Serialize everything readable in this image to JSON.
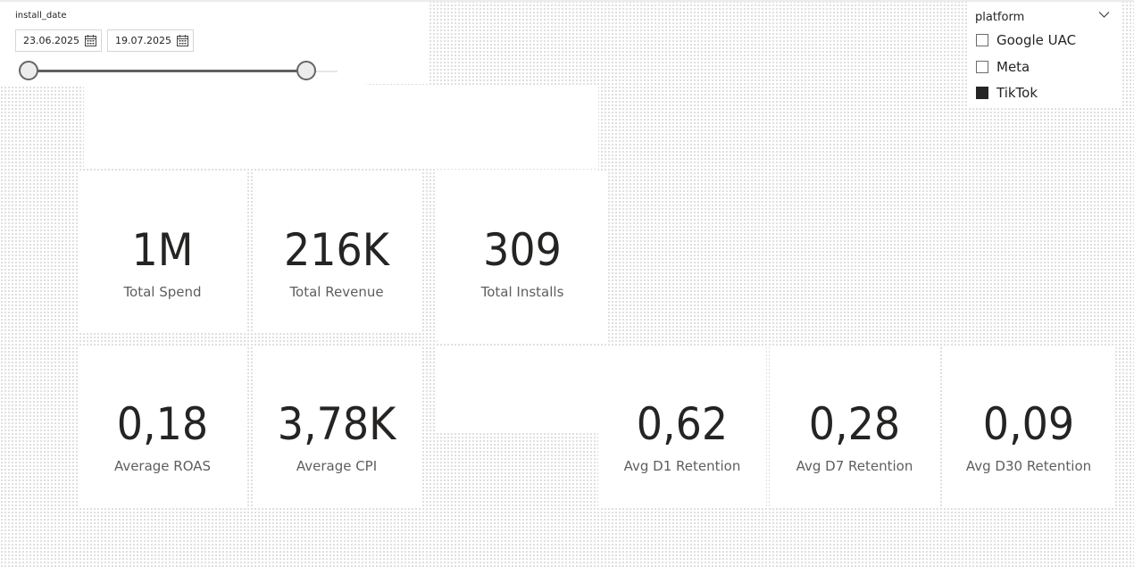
{
  "date_slicer": {
    "title": "install_date",
    "start_date": "23.06.2025",
    "end_date": "19.07.2025",
    "icon": "calendar-icon"
  },
  "platform_slicer": {
    "title": "platform",
    "items": [
      {
        "label": "Google UAC",
        "checked": false
      },
      {
        "label": "Meta",
        "checked": false
      },
      {
        "label": "TikTok",
        "checked": true
      }
    ]
  },
  "kpis": {
    "total_spend": {
      "value": "1M",
      "label": "Total Spend"
    },
    "total_revenue": {
      "value": "216K",
      "label": "Total Revenue"
    },
    "total_installs": {
      "value": "309",
      "label": "Total Installs"
    },
    "average_roas": {
      "value": "0,18",
      "label": "Average ROAS"
    },
    "average_cpi": {
      "value": "3,78K",
      "label": "Average CPI"
    },
    "avg_d1_retention": {
      "value": "0,62",
      "label": "Avg D1 Retention"
    },
    "avg_d7_retention": {
      "value": "0,28",
      "label": "Avg D7 Retention"
    },
    "avg_d30_retention": {
      "value": "0,09",
      "label": "Avg D30 Retention"
    }
  },
  "colors": {
    "text": "#252423",
    "label": "#605e5c",
    "slider": "#5f5f5f",
    "grid_dot": "#8a8a8a"
  }
}
